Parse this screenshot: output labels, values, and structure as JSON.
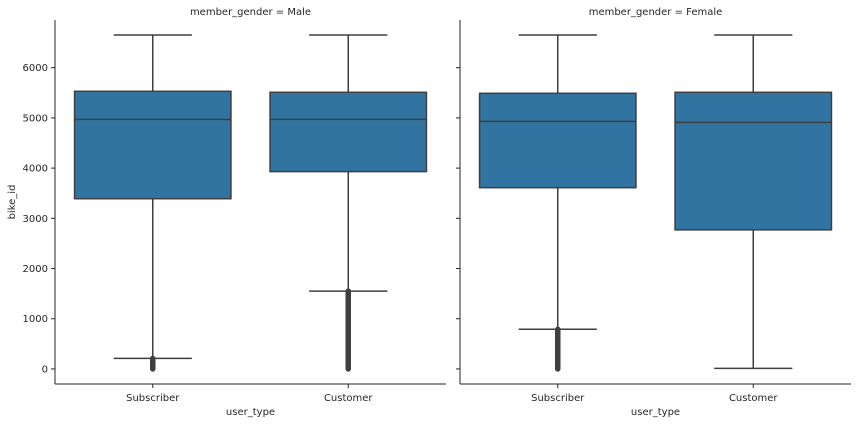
{
  "chart_data": {
    "type": "box",
    "facet_variable": "member_gender",
    "panels": [
      {
        "title": "member_gender = Male",
        "categories": [
          "Subscriber",
          "Customer"
        ],
        "boxes": [
          {
            "category": "Subscriber",
            "whisker_low": 210,
            "q1": 3390,
            "median": 4970,
            "q3": 5530,
            "whisker_high": 6650,
            "outliers_min": 0,
            "outliers_max": 210
          },
          {
            "category": "Customer",
            "whisker_low": 1550,
            "q1": 3930,
            "median": 4970,
            "q3": 5510,
            "whisker_high": 6650,
            "outliers_min": 0,
            "outliers_max": 1550
          }
        ]
      },
      {
        "title": "member_gender = Female",
        "categories": [
          "Subscriber",
          "Customer"
        ],
        "boxes": [
          {
            "category": "Subscriber",
            "whisker_low": 790,
            "q1": 3610,
            "median": 4930,
            "q3": 5490,
            "whisker_high": 6650,
            "outliers_min": 0,
            "outliers_max": 790
          },
          {
            "category": "Customer",
            "whisker_low": 10,
            "q1": 2770,
            "median": 4910,
            "q3": 5510,
            "whisker_high": 6650,
            "outliers_min": null,
            "outliers_max": null
          }
        ]
      }
    ],
    "xlabel": "user_type",
    "ylabel": "bike_id",
    "ylim": [
      -300,
      6950
    ],
    "yticks": [
      0,
      1000,
      2000,
      3000,
      4000,
      5000,
      6000
    ],
    "box_color": "#3274a1",
    "line_color": "#3f3f3f",
    "grid": false
  }
}
